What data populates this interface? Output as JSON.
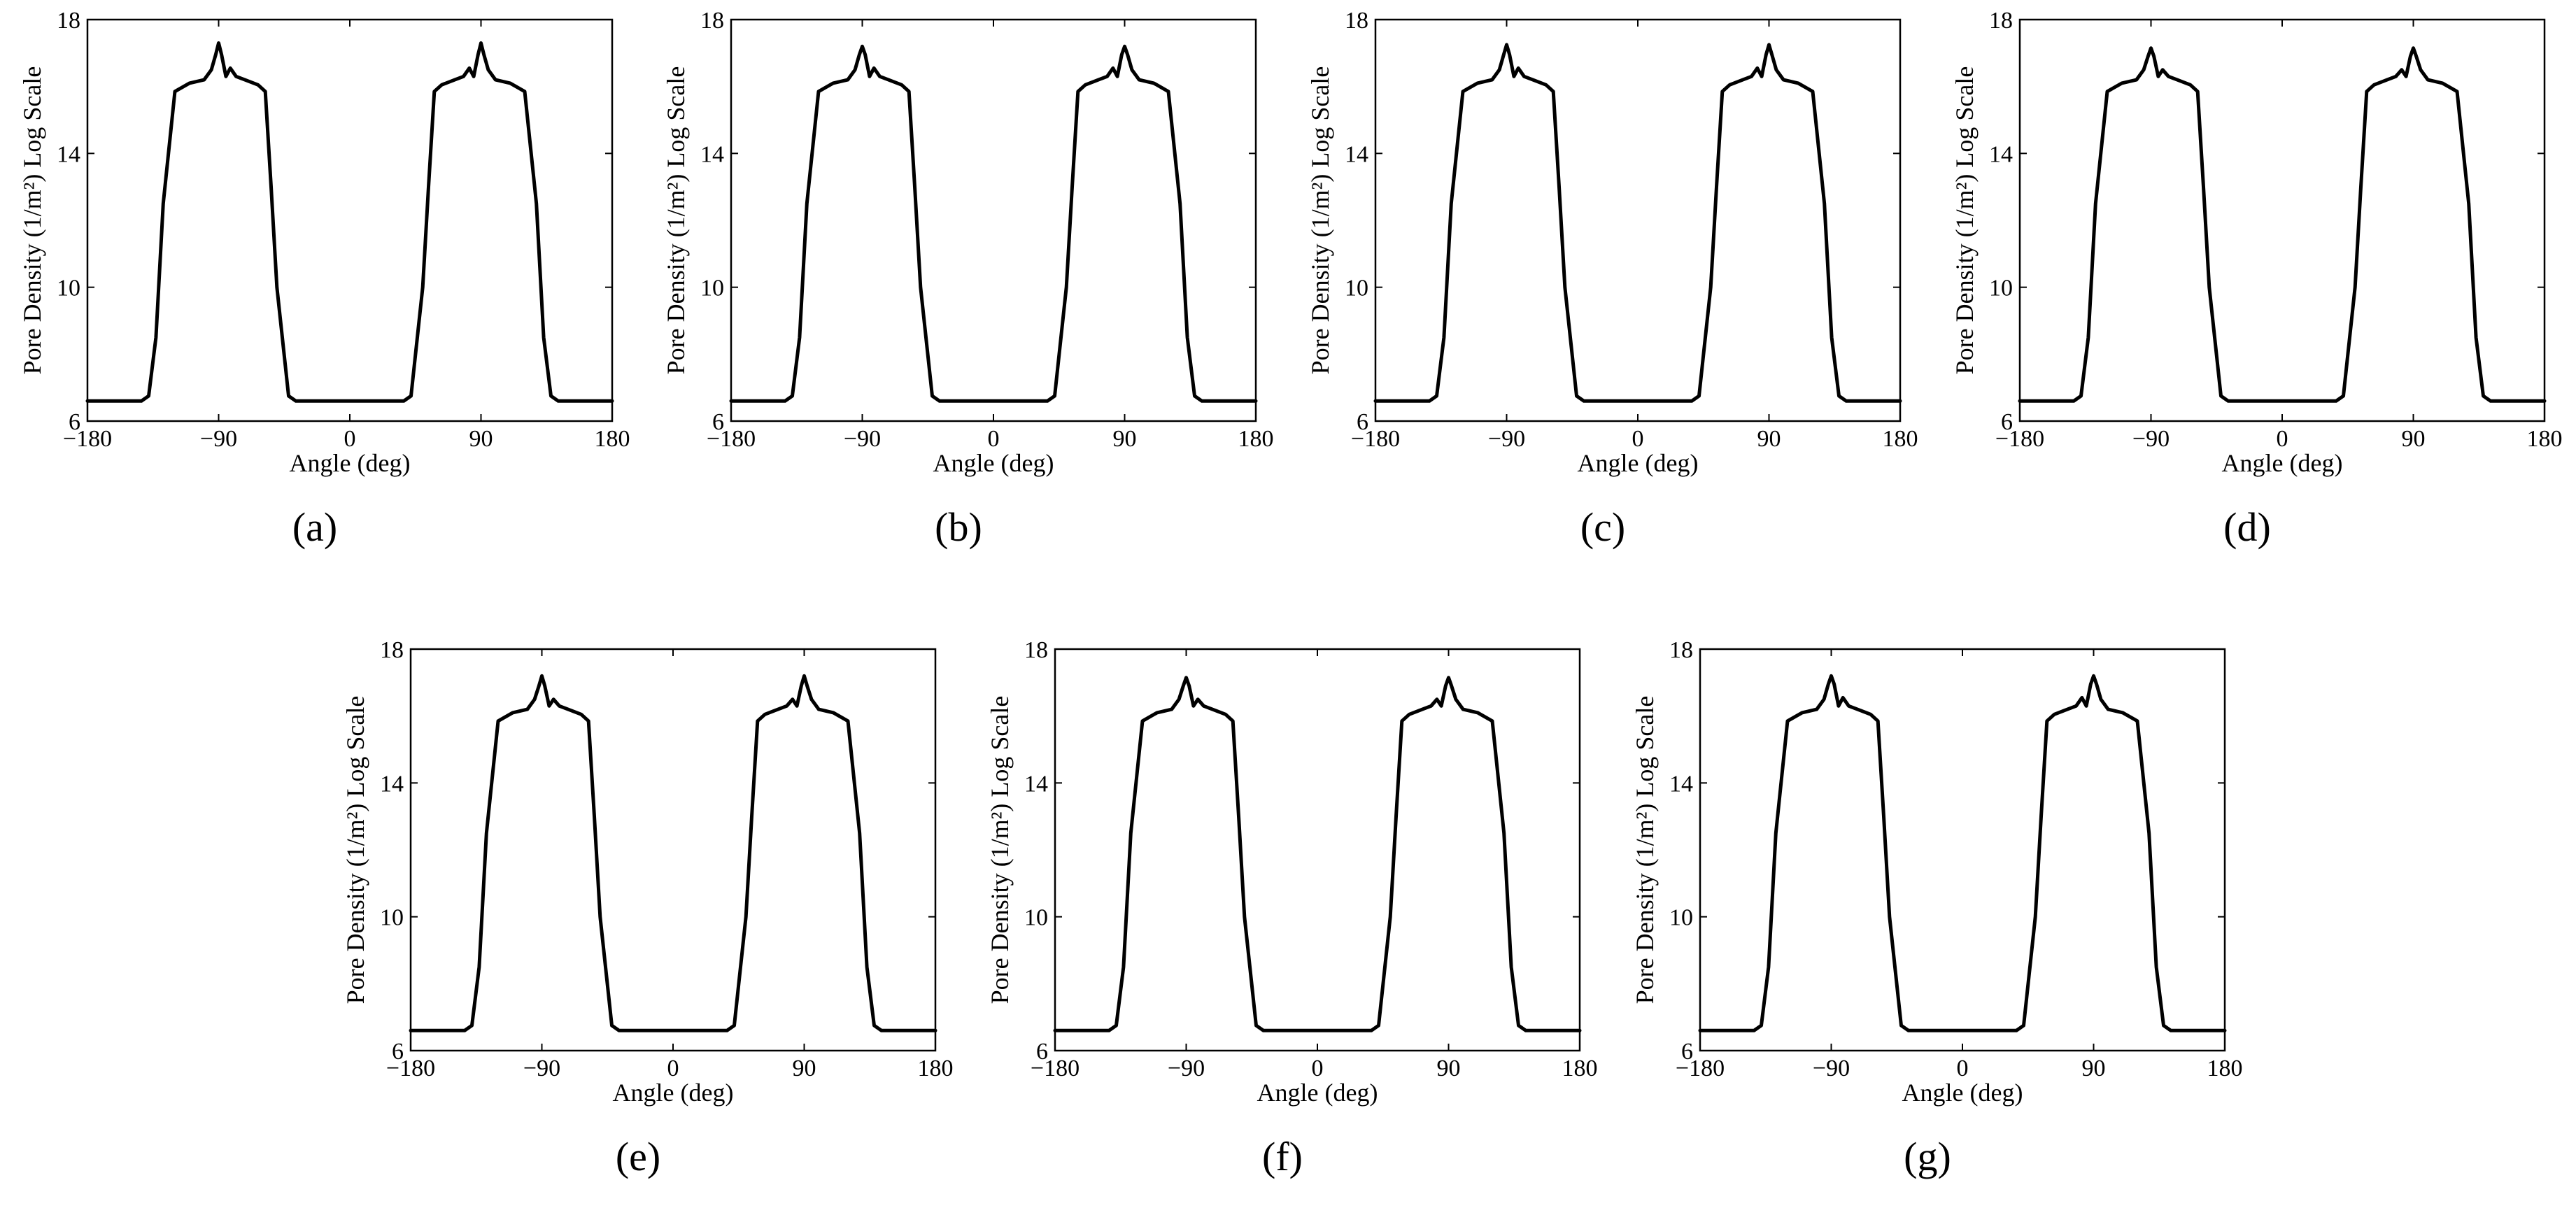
{
  "chart_data": [
    {
      "id": "a",
      "caption": "(a)",
      "type": "line",
      "xlabel": "Angle (deg)",
      "ylabel": "Pore Density (1/m²) Log Scale",
      "xlim": [
        -180,
        180
      ],
      "ylim": [
        6,
        18
      ],
      "xticks": [
        -180,
        -90,
        0,
        90,
        180
      ],
      "xtick_labels": [
        "−180",
        "−90",
        "0",
        "90",
        "180"
      ],
      "yticks": [
        6,
        10,
        14,
        18
      ],
      "ytick_labels": [
        "6",
        "10",
        "14",
        "18"
      ],
      "series": [
        {
          "name": "pore density",
          "x": [
            -180,
            -143,
            -138,
            -133,
            -128,
            -120,
            -110,
            -100,
            -95,
            -92,
            -90,
            -88,
            -85,
            -82,
            -78,
            -72,
            -63,
            -58,
            -54,
            -50,
            -42,
            -37,
            -32,
            -20,
            0,
            20,
            32,
            37,
            42,
            50,
            54,
            58,
            63,
            72,
            78,
            82,
            85,
            88,
            90,
            92,
            95,
            100,
            110,
            120,
            128,
            133,
            138,
            143,
            180
          ],
          "y": [
            6.6,
            6.6,
            6.75,
            8.5,
            12.5,
            15.85,
            16.1,
            16.2,
            16.5,
            16.95,
            17.3,
            16.95,
            16.3,
            16.55,
            16.3,
            16.2,
            16.05,
            15.85,
            13.0,
            10.0,
            6.75,
            6.6,
            6.6,
            6.6,
            6.6,
            6.6,
            6.6,
            6.6,
            6.75,
            10.0,
            13.0,
            15.85,
            16.05,
            16.2,
            16.3,
            16.55,
            16.3,
            16.95,
            17.3,
            16.95,
            16.5,
            16.2,
            16.1,
            15.85,
            12.5,
            8.5,
            6.75,
            6.6,
            6.6
          ]
        }
      ]
    },
    {
      "id": "b",
      "caption": "(b)",
      "type": "line",
      "xlabel": "Angle (deg)",
      "ylabel": "Pore Density (1/m²) Log Scale",
      "xlim": [
        -180,
        180
      ],
      "ylim": [
        6,
        18
      ],
      "xticks": [
        -180,
        -90,
        0,
        90,
        180
      ],
      "xtick_labels": [
        "−180",
        "−90",
        "0",
        "90",
        "180"
      ],
      "yticks": [
        6,
        10,
        14,
        18
      ],
      "ytick_labels": [
        "6",
        "10",
        "14",
        "18"
      ],
      "series": [
        {
          "name": "pore density",
          "x": [
            -180,
            -143,
            -138,
            -133,
            -128,
            -120,
            -110,
            -100,
            -95,
            -92,
            -90,
            -88,
            -85,
            -82,
            -78,
            -72,
            -63,
            -58,
            -54,
            -50,
            -42,
            -37,
            -32,
            -20,
            0,
            20,
            32,
            37,
            42,
            50,
            54,
            58,
            63,
            72,
            78,
            82,
            85,
            88,
            90,
            92,
            95,
            100,
            110,
            120,
            128,
            133,
            138,
            143,
            180
          ],
          "y": [
            6.6,
            6.6,
            6.75,
            8.5,
            12.5,
            15.85,
            16.1,
            16.2,
            16.5,
            16.95,
            17.2,
            16.95,
            16.3,
            16.55,
            16.3,
            16.2,
            16.05,
            15.85,
            13.0,
            10.0,
            6.75,
            6.6,
            6.6,
            6.6,
            6.6,
            6.6,
            6.6,
            6.6,
            6.75,
            10.0,
            13.0,
            15.85,
            16.05,
            16.2,
            16.3,
            16.55,
            16.3,
            16.95,
            17.2,
            16.95,
            16.5,
            16.2,
            16.1,
            15.85,
            12.5,
            8.5,
            6.75,
            6.6,
            6.6
          ]
        }
      ]
    },
    {
      "id": "c",
      "caption": "(c)",
      "type": "line",
      "xlabel": "Angle (deg)",
      "ylabel": "Pore Density (1/m²) Log Scale",
      "xlim": [
        -180,
        180
      ],
      "ylim": [
        6,
        18
      ],
      "xticks": [
        -180,
        -90,
        0,
        90,
        180
      ],
      "xtick_labels": [
        "−180",
        "−90",
        "0",
        "90",
        "180"
      ],
      "yticks": [
        6,
        10,
        14,
        18
      ],
      "ytick_labels": [
        "6",
        "10",
        "14",
        "18"
      ],
      "series": [
        {
          "name": "pore density",
          "x": [
            -180,
            -143,
            -138,
            -133,
            -128,
            -120,
            -110,
            -100,
            -95,
            -92,
            -90,
            -88,
            -85,
            -82,
            -78,
            -72,
            -63,
            -58,
            -54,
            -50,
            -42,
            -37,
            -32,
            -20,
            0,
            20,
            32,
            37,
            42,
            50,
            54,
            58,
            63,
            72,
            78,
            82,
            85,
            88,
            90,
            92,
            95,
            100,
            110,
            120,
            128,
            133,
            138,
            143,
            180
          ],
          "y": [
            6.6,
            6.6,
            6.75,
            8.5,
            12.5,
            15.85,
            16.1,
            16.2,
            16.5,
            16.95,
            17.25,
            16.95,
            16.3,
            16.55,
            16.3,
            16.2,
            16.05,
            15.85,
            13.0,
            10.0,
            6.75,
            6.6,
            6.6,
            6.6,
            6.6,
            6.6,
            6.6,
            6.6,
            6.75,
            10.0,
            13.0,
            15.85,
            16.05,
            16.2,
            16.3,
            16.55,
            16.3,
            16.95,
            17.25,
            16.95,
            16.5,
            16.2,
            16.1,
            15.85,
            12.5,
            8.5,
            6.75,
            6.6,
            6.6
          ]
        }
      ]
    },
    {
      "id": "d",
      "caption": "(d)",
      "type": "line",
      "xlabel": "Angle (deg)",
      "ylabel": "Pore Density (1/m²) Log Scale",
      "xlim": [
        -180,
        180
      ],
      "ylim": [
        6,
        18
      ],
      "xticks": [
        -180,
        -90,
        0,
        90,
        180
      ],
      "xtick_labels": [
        "−180",
        "−90",
        "0",
        "90",
        "180"
      ],
      "yticks": [
        6,
        10,
        14,
        18
      ],
      "ytick_labels": [
        "6",
        "10",
        "14",
        "18"
      ],
      "series": [
        {
          "name": "pore density",
          "x": [
            -180,
            -143,
            -138,
            -133,
            -128,
            -120,
            -110,
            -100,
            -95,
            -92,
            -90,
            -88,
            -85,
            -82,
            -78,
            -72,
            -63,
            -58,
            -54,
            -50,
            -42,
            -37,
            -32,
            -20,
            0,
            20,
            32,
            37,
            42,
            50,
            54,
            58,
            63,
            72,
            78,
            82,
            85,
            88,
            90,
            92,
            95,
            100,
            110,
            120,
            128,
            133,
            138,
            143,
            180
          ],
          "y": [
            6.6,
            6.6,
            6.75,
            8.5,
            12.5,
            15.85,
            16.1,
            16.2,
            16.5,
            16.9,
            17.15,
            16.9,
            16.3,
            16.5,
            16.3,
            16.2,
            16.05,
            15.85,
            13.0,
            10.0,
            6.75,
            6.6,
            6.6,
            6.6,
            6.6,
            6.6,
            6.6,
            6.6,
            6.75,
            10.0,
            13.0,
            15.85,
            16.05,
            16.2,
            16.3,
            16.5,
            16.3,
            16.9,
            17.15,
            16.9,
            16.5,
            16.2,
            16.1,
            15.85,
            12.5,
            8.5,
            6.75,
            6.6,
            6.6
          ]
        }
      ]
    },
    {
      "id": "e",
      "caption": "(e)",
      "type": "line",
      "xlabel": "Angle (deg)",
      "ylabel": "Pore Density (1/m²) Log Scale",
      "xlim": [
        -180,
        180
      ],
      "ylim": [
        6,
        18
      ],
      "xticks": [
        -180,
        -90,
        0,
        90,
        180
      ],
      "xtick_labels": [
        "−180",
        "−90",
        "0",
        "90",
        "180"
      ],
      "yticks": [
        6,
        10,
        14,
        18
      ],
      "ytick_labels": [
        "6",
        "10",
        "14",
        "18"
      ],
      "series": [
        {
          "name": "pore density",
          "x": [
            -180,
            -143,
            -138,
            -133,
            -128,
            -120,
            -110,
            -100,
            -95,
            -92,
            -90,
            -88,
            -85,
            -82,
            -78,
            -72,
            -63,
            -58,
            -54,
            -50,
            -42,
            -37,
            -32,
            -20,
            0,
            20,
            32,
            37,
            42,
            50,
            54,
            58,
            63,
            72,
            78,
            82,
            85,
            88,
            90,
            92,
            95,
            100,
            110,
            120,
            128,
            133,
            138,
            143,
            180
          ],
          "y": [
            6.6,
            6.6,
            6.75,
            8.5,
            12.5,
            15.85,
            16.1,
            16.2,
            16.5,
            16.9,
            17.2,
            16.9,
            16.3,
            16.5,
            16.3,
            16.2,
            16.05,
            15.85,
            13.0,
            10.0,
            6.75,
            6.6,
            6.6,
            6.6,
            6.6,
            6.6,
            6.6,
            6.6,
            6.75,
            10.0,
            13.0,
            15.85,
            16.05,
            16.2,
            16.3,
            16.5,
            16.3,
            16.9,
            17.2,
            16.9,
            16.5,
            16.2,
            16.1,
            15.85,
            12.5,
            8.5,
            6.75,
            6.6,
            6.6
          ]
        }
      ]
    },
    {
      "id": "f",
      "caption": "(f)",
      "type": "line",
      "xlabel": "Angle (deg)",
      "ylabel": "Pore Density (1/m²) Log Scale",
      "xlim": [
        -180,
        180
      ],
      "ylim": [
        6,
        18
      ],
      "xticks": [
        -180,
        -90,
        0,
        90,
        180
      ],
      "xtick_labels": [
        "−180",
        "−90",
        "0",
        "90",
        "180"
      ],
      "yticks": [
        6,
        10,
        14,
        18
      ],
      "ytick_labels": [
        "6",
        "10",
        "14",
        "18"
      ],
      "series": [
        {
          "name": "pore density",
          "x": [
            -180,
            -143,
            -138,
            -133,
            -128,
            -120,
            -110,
            -100,
            -95,
            -92,
            -90,
            -88,
            -85,
            -82,
            -78,
            -72,
            -63,
            -58,
            -54,
            -50,
            -42,
            -37,
            -32,
            -20,
            0,
            20,
            32,
            37,
            42,
            50,
            54,
            58,
            63,
            72,
            78,
            82,
            85,
            88,
            90,
            92,
            95,
            100,
            110,
            120,
            128,
            133,
            138,
            143,
            180
          ],
          "y": [
            6.6,
            6.6,
            6.75,
            8.5,
            12.5,
            15.85,
            16.1,
            16.2,
            16.5,
            16.9,
            17.15,
            16.9,
            16.3,
            16.5,
            16.3,
            16.2,
            16.05,
            15.85,
            13.0,
            10.0,
            6.75,
            6.6,
            6.6,
            6.6,
            6.6,
            6.6,
            6.6,
            6.6,
            6.75,
            10.0,
            13.0,
            15.85,
            16.05,
            16.2,
            16.3,
            16.5,
            16.3,
            16.9,
            17.15,
            16.9,
            16.5,
            16.2,
            16.1,
            15.85,
            12.5,
            8.5,
            6.75,
            6.6,
            6.6
          ]
        }
      ]
    },
    {
      "id": "g",
      "caption": "(g)",
      "type": "line",
      "xlabel": "Angle (deg)",
      "ylabel": "Pore Density (1/m²) Log Scale",
      "xlim": [
        -180,
        180
      ],
      "ylim": [
        6,
        18
      ],
      "xticks": [
        -180,
        -90,
        0,
        90,
        180
      ],
      "xtick_labels": [
        "−180",
        "−90",
        "0",
        "90",
        "180"
      ],
      "yticks": [
        6,
        10,
        14,
        18
      ],
      "ytick_labels": [
        "6",
        "10",
        "14",
        "18"
      ],
      "series": [
        {
          "name": "pore density",
          "x": [
            -180,
            -143,
            -138,
            -133,
            -128,
            -120,
            -110,
            -100,
            -95,
            -92,
            -90,
            -88,
            -85,
            -82,
            -78,
            -72,
            -63,
            -58,
            -54,
            -50,
            -42,
            -37,
            -32,
            -20,
            0,
            20,
            32,
            37,
            42,
            50,
            54,
            58,
            63,
            72,
            78,
            82,
            85,
            88,
            90,
            92,
            95,
            100,
            110,
            120,
            128,
            133,
            138,
            143,
            180
          ],
          "y": [
            6.6,
            6.6,
            6.75,
            8.5,
            12.5,
            15.85,
            16.1,
            16.2,
            16.5,
            16.95,
            17.2,
            16.95,
            16.3,
            16.55,
            16.3,
            16.2,
            16.05,
            15.85,
            13.0,
            10.0,
            6.75,
            6.6,
            6.6,
            6.6,
            6.6,
            6.6,
            6.6,
            6.6,
            6.75,
            10.0,
            13.0,
            15.85,
            16.05,
            16.2,
            16.3,
            16.55,
            16.3,
            16.95,
            17.2,
            16.95,
            16.5,
            16.2,
            16.1,
            15.85,
            12.5,
            8.5,
            6.75,
            6.6,
            6.6
          ]
        }
      ]
    }
  ]
}
